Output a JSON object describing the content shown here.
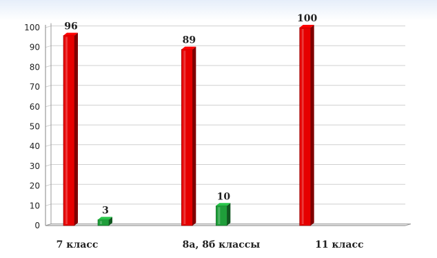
{
  "chart_data": {
    "type": "bar",
    "categories": [
      "7 класс",
      "8а, 8б классы",
      "11 класс"
    ],
    "series": [
      {
        "color": "#e60000",
        "values": [
          96,
          89,
          100
        ]
      },
      {
        "color": "#1f9e3a",
        "values": [
          3,
          10,
          null
        ]
      }
    ],
    "data_labels": [
      [
        "96",
        "89",
        "100"
      ],
      [
        "3",
        "10",
        ""
      ]
    ],
    "ylim": [
      0,
      100
    ],
    "yticks": [
      0,
      10,
      20,
      30,
      40,
      50,
      60,
      70,
      80,
      90,
      100
    ],
    "grid": true,
    "legend": "none",
    "colors": {
      "axis": "#9a9a9a",
      "grid": "#cfcfcf",
      "text": "#222222"
    }
  }
}
